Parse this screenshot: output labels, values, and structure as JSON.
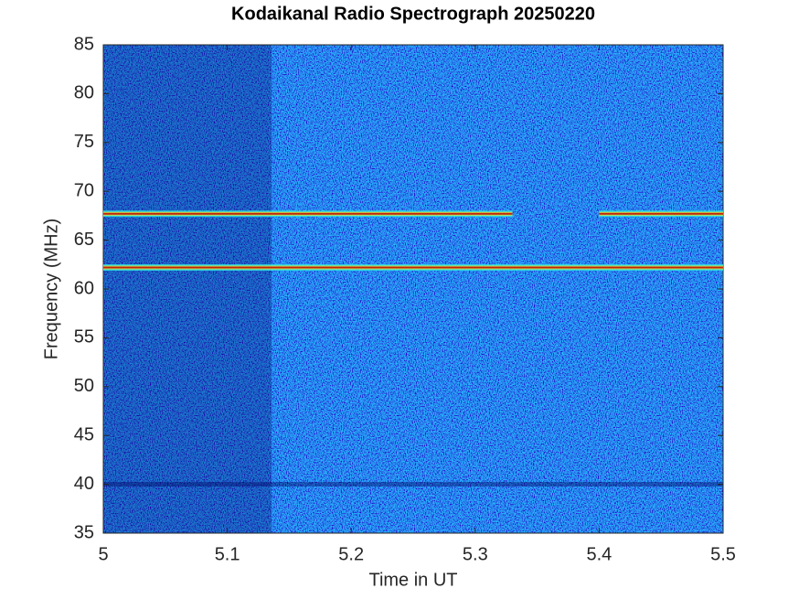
{
  "chart_data": {
    "type": "heatmap",
    "title": "Kodaikanal Radio Spectrograph  20250220",
    "xlabel": "Time in UT",
    "ylabel": "Frequency (MHz)",
    "xlim": [
      5,
      5.5
    ],
    "ylim": [
      35,
      85
    ],
    "xticks": [
      5,
      5.1,
      5.2,
      5.3,
      5.4,
      5.5
    ],
    "yticks": [
      35,
      40,
      45,
      50,
      55,
      60,
      65,
      70,
      75,
      80,
      85
    ],
    "bands": [
      {
        "y": 62.2,
        "x": [
          5,
          5.5
        ]
      },
      {
        "y": 67.7,
        "x": [
          5,
          5.33
        ]
      },
      {
        "y": 67.7,
        "x": [
          5.4,
          5.5
        ]
      }
    ]
  }
}
